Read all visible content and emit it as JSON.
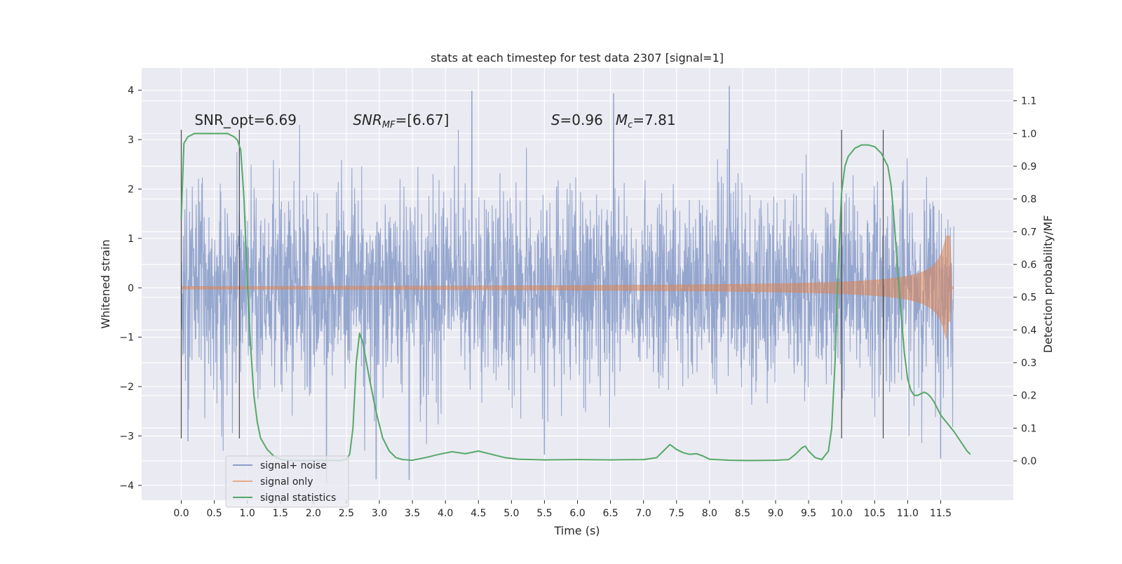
{
  "chart_data": {
    "type": "line",
    "title": "stats at each timestep for test data 2307 [signal=1]",
    "xlabel": "Time (s)",
    "ylabel": "Whitened strain",
    "ylabel_right": "Detection probability/MF",
    "xlim": [
      -0.6,
      12.6
    ],
    "ylim": [
      -4.3,
      4.45
    ],
    "ylim_right": [
      -0.12,
      1.2
    ],
    "x_ticks": [
      "0.0",
      "0.5",
      "1.0",
      "1.5",
      "2.0",
      "2.5",
      "3.0",
      "3.5",
      "4.0",
      "4.5",
      "5.0",
      "5.5",
      "6.0",
      "6.5",
      "7.0",
      "7.5",
      "8.0",
      "8.5",
      "9.0",
      "9.5",
      "10.0",
      "10.5",
      "11.0",
      "11.5"
    ],
    "y_ticks": [
      "4",
      "3",
      "2",
      "1",
      "0",
      "−1",
      "−2",
      "−3",
      "−4"
    ],
    "y_ticks_right": [
      "1.1",
      "1.0",
      "0.9",
      "0.8",
      "0.7",
      "0.6",
      "0.5",
      "0.4",
      "0.3",
      "0.2",
      "0.1",
      "0.0"
    ],
    "grid": true,
    "legend_placement": "lower-left",
    "annotations": [
      {
        "id": "snr-opt",
        "text": "SNR_opt=6.69",
        "x": 0.2,
        "y": 3.3
      },
      {
        "id": "snr-mf",
        "text": "=[6.67]",
        "prefix_italic": "SNR",
        "sub": "MF",
        "x": 2.6,
        "y": 3.3
      },
      {
        "id": "s-mc",
        "text": "=0.96",
        "prefix_italic": "S",
        "second_italic": "M",
        "second_sub": "c",
        "second_text": "=7.81",
        "x": 5.6,
        "y": 3.3
      }
    ],
    "detection_boundaries_x": [
      0.0,
      0.88,
      10.0,
      10.63
    ],
    "detection_boundaries_y": [
      -3.05,
      3.2
    ],
    "series": [
      {
        "name": "signal+ noise",
        "color": "#8c9fca",
        "x_range": [
          0.0,
          11.7
        ],
        "sigma": 1.0,
        "extremes": [
          [
            4.4,
            3.98
          ],
          [
            5.5,
            -3.37
          ],
          [
            6.55,
            3.93
          ],
          [
            8.3,
            4.08
          ],
          [
            2.95,
            -3.87
          ],
          [
            3.45,
            -3.88
          ],
          [
            2.2,
            -3.95
          ],
          [
            11.5,
            -3.45
          ],
          [
            0.1,
            -3.1
          ]
        ]
      },
      {
        "name": "signal only",
        "color": "#dd8452",
        "x_range": [
          0.0,
          11.7
        ],
        "chirp_end": 11.65,
        "peak_amplitude": 1.05
      },
      {
        "name": "signal statistics",
        "color": "#55a868",
        "axis": "right",
        "x": [
          0.0,
          0.04,
          0.1,
          0.2,
          0.3,
          0.4,
          0.5,
          0.6,
          0.7,
          0.8,
          0.85,
          0.9,
          0.95,
          1.0,
          1.05,
          1.1,
          1.15,
          1.2,
          1.3,
          1.4,
          1.5,
          1.6,
          1.8,
          2.0,
          2.2,
          2.4,
          2.5,
          2.55,
          2.6,
          2.65,
          2.7,
          2.75,
          2.85,
          2.95,
          3.05,
          3.15,
          3.25,
          3.35,
          3.5,
          3.7,
          3.9,
          4.1,
          4.3,
          4.5,
          4.7,
          4.9,
          5.1,
          5.5,
          6.0,
          6.5,
          7.0,
          7.2,
          7.3,
          7.4,
          7.5,
          7.6,
          7.7,
          7.8,
          7.9,
          8.0,
          8.3,
          8.6,
          9.0,
          9.2,
          9.3,
          9.4,
          9.45,
          9.5,
          9.6,
          9.7,
          9.8,
          9.85,
          9.9,
          9.95,
          10.0,
          10.05,
          10.1,
          10.2,
          10.3,
          10.4,
          10.5,
          10.6,
          10.7,
          10.75,
          10.8,
          10.85,
          10.9,
          10.95,
          11.0,
          11.05,
          11.1,
          11.15,
          11.2,
          11.25,
          11.3,
          11.35,
          11.4,
          11.45,
          11.5,
          11.6,
          11.7,
          11.8,
          11.9,
          11.95
        ],
        "y": [
          0.74,
          0.97,
          0.99,
          1.0,
          1.0,
          1.0,
          1.0,
          1.0,
          1.0,
          0.99,
          0.98,
          0.95,
          0.8,
          0.55,
          0.35,
          0.2,
          0.12,
          0.07,
          0.035,
          0.015,
          0.005,
          0.002,
          0.001,
          0.001,
          0.002,
          0.001,
          0.005,
          0.02,
          0.1,
          0.3,
          0.39,
          0.36,
          0.25,
          0.15,
          0.07,
          0.03,
          0.01,
          0.004,
          0.002,
          0.01,
          0.02,
          0.028,
          0.022,
          0.03,
          0.02,
          0.01,
          0.005,
          0.003,
          0.004,
          0.003,
          0.004,
          0.01,
          0.03,
          0.05,
          0.035,
          0.025,
          0.02,
          0.022,
          0.015,
          0.005,
          0.002,
          0.001,
          0.002,
          0.004,
          0.02,
          0.04,
          0.045,
          0.03,
          0.01,
          0.004,
          0.03,
          0.1,
          0.3,
          0.6,
          0.82,
          0.9,
          0.93,
          0.955,
          0.965,
          0.965,
          0.96,
          0.94,
          0.9,
          0.84,
          0.72,
          0.58,
          0.45,
          0.33,
          0.25,
          0.215,
          0.2,
          0.2,
          0.205,
          0.21,
          0.205,
          0.195,
          0.18,
          0.16,
          0.14,
          0.115,
          0.09,
          0.06,
          0.03,
          0.02
        ]
      }
    ]
  }
}
